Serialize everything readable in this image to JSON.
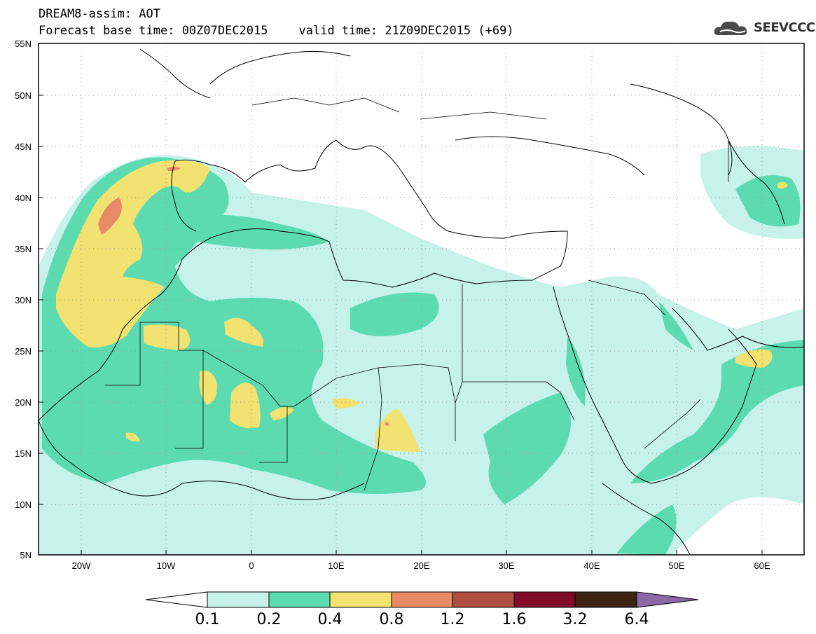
{
  "header": {
    "title_line1": "DREAM8-assim: AOT",
    "base_time": "Forecast base time: 00Z07DEC2015",
    "valid_time": "valid time: 21Z09DEC2015 (+69)",
    "logo_text": "SEEVCCC"
  },
  "map": {
    "lat_labels": [
      "55N",
      "50N",
      "45N",
      "40N",
      "35N",
      "30N",
      "25N",
      "20N",
      "15N",
      "10N",
      "5N"
    ],
    "lon_labels": [
      "20W",
      "10W",
      "0",
      "10E",
      "20E",
      "30E",
      "40E",
      "50E",
      "60E"
    ],
    "lat_range": [
      5,
      55
    ],
    "lon_range": [
      -25,
      65
    ],
    "variable": "AOT"
  },
  "legend": {
    "levels": [
      "0.1",
      "0.2",
      "0.4",
      "0.8",
      "1.2",
      "1.6",
      "3.2",
      "6.4"
    ],
    "colors": [
      "#c6f2ea",
      "#5ddbb0",
      "#f2e272",
      "#e88a66",
      "#b04e40",
      "#7f0a2a",
      "#3c2414",
      "#8c68a8"
    ]
  }
}
